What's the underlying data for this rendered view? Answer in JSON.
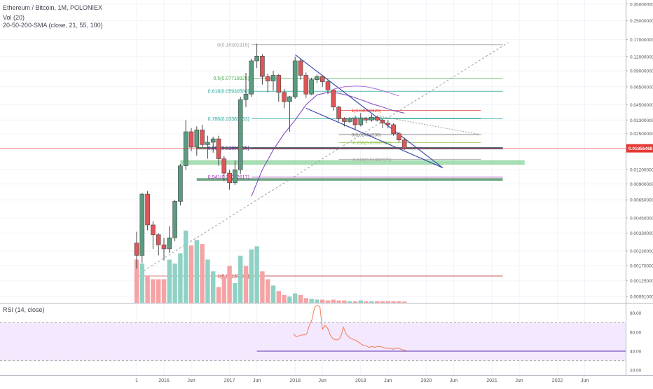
{
  "chart_data": {
    "type": "candlestick",
    "title": "Ethereum / Bitcoin, 1M, POLONIEX",
    "indicators": [
      "Vol (20)",
      "20-50-200-SMA (close, 21, 55, 100)"
    ],
    "price_axis": {
      "scale": "log",
      "range": [
        0.0008,
        0.38
      ],
      "tick_labels": [
        "0.35000000",
        "0.25000000",
        "0.17000000",
        "0.12000000",
        "0.09000000",
        "0.06500000",
        "0.04500000",
        "0.03300000",
        "0.02500000",
        "0.01800000",
        "0.01200000",
        "0.00900000",
        "0.00650000",
        "0.00450000",
        "0.00330000",
        "0.00230000",
        "0.00170000",
        "0.00125000",
        "0.00091000"
      ],
      "tick_values": [
        0.35,
        0.25,
        0.17,
        0.12,
        0.09,
        0.065,
        0.045,
        0.033,
        0.025,
        0.018,
        0.012,
        0.009,
        0.0065,
        0.0045,
        0.0033,
        0.0023,
        0.0017,
        0.00125,
        0.00091
      ],
      "current_price_label": "0.01856488",
      "current_price": 0.01856488
    },
    "time_axis": {
      "tick_labels": [
        "1",
        "2016",
        "Jun",
        "2017",
        "Jun",
        "2018",
        "Jun",
        "2019",
        "Jun",
        "2020",
        "Jun",
        "2021",
        "Jun",
        "2022",
        "Jun"
      ],
      "tick_months": [
        7,
        12,
        17,
        24,
        29,
        36,
        41,
        48,
        53,
        60,
        65,
        72,
        77,
        84,
        89
      ]
    },
    "candles": [
      {
        "m": 7,
        "o": 0.0027,
        "h": 0.0034,
        "l": 0.0016,
        "c": 0.0021
      },
      {
        "m": 8,
        "o": 0.0021,
        "h": 0.0075,
        "l": 0.0018,
        "c": 0.0073
      },
      {
        "m": 9,
        "o": 0.0073,
        "h": 0.0078,
        "l": 0.0035,
        "c": 0.0039
      },
      {
        "m": 10,
        "o": 0.0039,
        "h": 0.0042,
        "l": 0.0024,
        "c": 0.0032
      },
      {
        "m": 11,
        "o": 0.0032,
        "h": 0.0033,
        "l": 0.0021,
        "c": 0.0026
      },
      {
        "m": 12,
        "o": 0.0026,
        "h": 0.003,
        "l": 0.0019,
        "c": 0.0024
      },
      {
        "m": 13,
        "o": 0.0024,
        "h": 0.0038,
        "l": 0.0022,
        "c": 0.003
      },
      {
        "m": 14,
        "o": 0.003,
        "h": 0.0065,
        "l": 0.0028,
        "c": 0.0063
      },
      {
        "m": 15,
        "o": 0.0063,
        "h": 0.0135,
        "l": 0.0058,
        "c": 0.013
      },
      {
        "m": 16,
        "o": 0.013,
        "h": 0.033,
        "l": 0.012,
        "c": 0.026
      },
      {
        "m": 17,
        "o": 0.026,
        "h": 0.028,
        "l": 0.0175,
        "c": 0.019
      },
      {
        "m": 18,
        "o": 0.019,
        "h": 0.029,
        "l": 0.016,
        "c": 0.027
      },
      {
        "m": 19,
        "o": 0.027,
        "h": 0.03,
        "l": 0.019,
        "c": 0.02
      },
      {
        "m": 20,
        "o": 0.02,
        "h": 0.024,
        "l": 0.015,
        "c": 0.021
      },
      {
        "m": 21,
        "o": 0.021,
        "h": 0.0235,
        "l": 0.017,
        "c": 0.0225
      },
      {
        "m": 22,
        "o": 0.0225,
        "h": 0.024,
        "l": 0.013,
        "c": 0.015
      },
      {
        "m": 23,
        "o": 0.015,
        "h": 0.016,
        "l": 0.0095,
        "c": 0.0112
      },
      {
        "m": 24,
        "o": 0.0112,
        "h": 0.012,
        "l": 0.008,
        "c": 0.0092
      },
      {
        "m": 25,
        "o": 0.0092,
        "h": 0.0145,
        "l": 0.0088,
        "c": 0.012
      },
      {
        "m": 26,
        "o": 0.012,
        "h": 0.053,
        "l": 0.011,
        "c": 0.05
      },
      {
        "m": 27,
        "o": 0.05,
        "h": 0.086,
        "l": 0.043,
        "c": 0.056
      },
      {
        "m": 28,
        "o": 0.056,
        "h": 0.115,
        "l": 0.053,
        "c": 0.11
      },
      {
        "m": 29,
        "o": 0.11,
        "h": 0.156,
        "l": 0.095,
        "c": 0.121
      },
      {
        "m": 30,
        "o": 0.121,
        "h": 0.126,
        "l": 0.068,
        "c": 0.08
      },
      {
        "m": 31,
        "o": 0.08,
        "h": 0.085,
        "l": 0.058,
        "c": 0.073
      },
      {
        "m": 32,
        "o": 0.073,
        "h": 0.09,
        "l": 0.06,
        "c": 0.082
      },
      {
        "m": 33,
        "o": 0.082,
        "h": 0.084,
        "l": 0.048,
        "c": 0.058
      },
      {
        "m": 34,
        "o": 0.058,
        "h": 0.062,
        "l": 0.042,
        "c": 0.048
      },
      {
        "m": 35,
        "o": 0.048,
        "h": 0.054,
        "l": 0.026,
        "c": 0.053
      },
      {
        "m": 36,
        "o": 0.053,
        "h": 0.12,
        "l": 0.051,
        "c": 0.11
      },
      {
        "m": 37,
        "o": 0.11,
        "h": 0.115,
        "l": 0.075,
        "c": 0.082
      },
      {
        "m": 38,
        "o": 0.082,
        "h": 0.087,
        "l": 0.052,
        "c": 0.056
      },
      {
        "m": 39,
        "o": 0.056,
        "h": 0.078,
        "l": 0.055,
        "c": 0.075
      },
      {
        "m": 40,
        "o": 0.075,
        "h": 0.083,
        "l": 0.07,
        "c": 0.08
      },
      {
        "m": 41,
        "o": 0.08,
        "h": 0.082,
        "l": 0.065,
        "c": 0.072
      },
      {
        "m": 42,
        "o": 0.072,
        "h": 0.074,
        "l": 0.056,
        "c": 0.061
      },
      {
        "m": 43,
        "o": 0.061,
        "h": 0.062,
        "l": 0.04,
        "c": 0.043
      },
      {
        "m": 44,
        "o": 0.043,
        "h": 0.044,
        "l": 0.032,
        "c": 0.034
      },
      {
        "m": 45,
        "o": 0.034,
        "h": 0.035,
        "l": 0.029,
        "c": 0.032
      },
      {
        "m": 46,
        "o": 0.032,
        "h": 0.035,
        "l": 0.031,
        "c": 0.034
      },
      {
        "m": 47,
        "o": 0.034,
        "h": 0.036,
        "l": 0.027,
        "c": 0.03
      },
      {
        "m": 48,
        "o": 0.03,
        "h": 0.038,
        "l": 0.029,
        "c": 0.034
      },
      {
        "m": 49,
        "o": 0.034,
        "h": 0.035,
        "l": 0.031,
        "c": 0.033
      },
      {
        "m": 50,
        "o": 0.033,
        "h": 0.037,
        "l": 0.032,
        "c": 0.035
      },
      {
        "m": 51,
        "o": 0.035,
        "h": 0.036,
        "l": 0.032,
        "c": 0.033
      },
      {
        "m": 52,
        "o": 0.033,
        "h": 0.034,
        "l": 0.028,
        "c": 0.031
      },
      {
        "m": 53,
        "o": 0.031,
        "h": 0.033,
        "l": 0.028,
        "c": 0.03
      },
      {
        "m": 54,
        "o": 0.03,
        "h": 0.031,
        "l": 0.024,
        "c": 0.025
      },
      {
        "m": 55,
        "o": 0.025,
        "h": 0.026,
        "l": 0.021,
        "c": 0.022
      },
      {
        "m": 56,
        "o": 0.022,
        "h": 0.023,
        "l": 0.018,
        "c": 0.0186
      }
    ],
    "volume_bars": [
      {
        "m": 7,
        "v": 0.55,
        "up": false
      },
      {
        "m": 8,
        "v": 0.5,
        "up": true
      },
      {
        "m": 9,
        "v": 0.35,
        "up": false
      },
      {
        "m": 10,
        "v": 0.3,
        "up": false
      },
      {
        "m": 11,
        "v": 0.3,
        "up": false
      },
      {
        "m": 12,
        "v": 0.3,
        "up": false
      },
      {
        "m": 13,
        "v": 0.55,
        "up": true
      },
      {
        "m": 14,
        "v": 0.5,
        "up": true
      },
      {
        "m": 15,
        "v": 0.63,
        "up": true
      },
      {
        "m": 16,
        "v": 0.92,
        "up": true
      },
      {
        "m": 17,
        "v": 0.73,
        "up": false
      },
      {
        "m": 18,
        "v": 0.8,
        "up": true
      },
      {
        "m": 19,
        "v": 0.75,
        "up": false
      },
      {
        "m": 20,
        "v": 0.55,
        "up": true
      },
      {
        "m": 21,
        "v": 0.4,
        "up": true
      },
      {
        "m": 22,
        "v": 0.2,
        "up": false
      },
      {
        "m": 23,
        "v": 0.33,
        "up": false
      },
      {
        "m": 24,
        "v": 0.47,
        "up": false
      },
      {
        "m": 25,
        "v": 0.25,
        "up": true
      },
      {
        "m": 26,
        "v": 0.6,
        "up": true
      },
      {
        "m": 27,
        "v": 0.47,
        "up": false
      },
      {
        "m": 28,
        "v": 0.68,
        "up": true
      },
      {
        "m": 29,
        "v": 0.72,
        "up": true
      },
      {
        "m": 30,
        "v": 0.4,
        "up": false
      },
      {
        "m": 31,
        "v": 0.3,
        "up": false
      },
      {
        "m": 32,
        "v": 0.22,
        "up": true
      },
      {
        "m": 33,
        "v": 0.15,
        "up": false
      },
      {
        "m": 34,
        "v": 0.1,
        "up": false
      },
      {
        "m": 35,
        "v": 0.08,
        "up": true
      },
      {
        "m": 36,
        "v": 0.12,
        "up": true
      },
      {
        "m": 37,
        "v": 0.1,
        "up": false
      },
      {
        "m": 38,
        "v": 0.06,
        "up": false
      },
      {
        "m": 39,
        "v": 0.05,
        "up": true
      },
      {
        "m": 40,
        "v": 0.04,
        "up": true
      },
      {
        "m": 41,
        "v": 0.04,
        "up": false
      },
      {
        "m": 42,
        "v": 0.03,
        "up": false
      },
      {
        "m": 43,
        "v": 0.04,
        "up": false
      },
      {
        "m": 44,
        "v": 0.03,
        "up": false
      },
      {
        "m": 45,
        "v": 0.03,
        "up": false
      },
      {
        "m": 46,
        "v": 0.02,
        "up": true
      },
      {
        "m": 47,
        "v": 0.02,
        "up": false
      },
      {
        "m": 48,
        "v": 0.03,
        "up": true
      },
      {
        "m": 49,
        "v": 0.02,
        "up": false
      },
      {
        "m": 50,
        "v": 0.02,
        "up": true
      },
      {
        "m": 51,
        "v": 0.02,
        "up": false
      },
      {
        "m": 52,
        "v": 0.02,
        "up": false
      },
      {
        "m": 53,
        "v": 0.02,
        "up": false
      },
      {
        "m": 54,
        "v": 0.02,
        "up": false
      },
      {
        "m": 55,
        "v": 0.02,
        "up": false
      },
      {
        "m": 56,
        "v": 0.015,
        "up": false
      }
    ],
    "sma_lines": [
      {
        "period": 21,
        "color": "#7b3fbf",
        "points": [
          [
            28,
            0.007
          ],
          [
            30,
            0.012
          ],
          [
            32,
            0.018
          ],
          [
            34,
            0.025
          ],
          [
            36,
            0.033
          ],
          [
            38,
            0.045
          ],
          [
            40,
            0.055
          ],
          [
            42,
            0.058
          ],
          [
            44,
            0.057
          ],
          [
            46,
            0.054
          ],
          [
            48,
            0.05
          ],
          [
            50,
            0.046
          ],
          [
            52,
            0.043
          ],
          [
            54,
            0.04
          ],
          [
            56,
            0.038
          ]
        ]
      },
      {
        "period": 55,
        "color": "#b06bd6",
        "points": [
          [
            43,
            0.062
          ],
          [
            45,
            0.065
          ],
          [
            47,
            0.066
          ],
          [
            49,
            0.065
          ],
          [
            51,
            0.062
          ],
          [
            53,
            0.058
          ],
          [
            55,
            0.054
          ]
        ]
      }
    ],
    "fib_levels": [
      {
        "label": "0(0.15301915)",
        "value": 0.15301915,
        "color": "#9e9e9e"
      },
      {
        "label": "0.5(0.07719929)",
        "value": 0.07719929,
        "color": "#4caf50"
      },
      {
        "label": "0.618(0.05930580)",
        "value": 0.0593058,
        "color": "#26a69a"
      },
      {
        "label": "0.786(0.03383033)",
        "value": 0.03383033,
        "color": "#26a69a"
      },
      {
        "label": "0.886(0.01866635)",
        "value": 0.01866635,
        "color": "#311b92"
      },
      {
        "label": "0.941(0.01032617)",
        "value": 0.01032617,
        "color": "#9c27b0"
      },
      {
        "label": "1(0.00137942)",
        "value": 0.00137942,
        "color": "#b71c1c"
      }
    ],
    "fib_levels_2": [
      {
        "label": "1(0.04009420)",
        "value": 0.0400942,
        "color": "#e53935"
      },
      {
        "label": "0.618(0.03420)",
        "value": 0.0342,
        "color": "#26a69a"
      },
      {
        "label": "0(0.02454230)",
        "value": 0.0245423,
        "color": "#757575"
      },
      {
        "label": "-0.236(0.02087332)",
        "value": 0.02087332,
        "color": "#8bc34a"
      },
      {
        "label": "-0.618(0.01482375)",
        "value": 0.01482375,
        "color": "#9e9e9e"
      }
    ],
    "rsi": {
      "label": "RSI (14, close)",
      "tick_labels": [
        "80.00",
        "60.00",
        "40.00",
        "20.00"
      ],
      "tick_values": [
        80,
        60,
        40,
        20
      ],
      "range": [
        15,
        90
      ],
      "band": [
        30,
        70
      ],
      "baseline": 40,
      "points": [
        [
          29,
          58
        ],
        [
          30,
          55
        ],
        [
          31,
          56
        ],
        [
          32,
          57
        ],
        [
          33,
          57
        ],
        [
          34,
          58
        ],
        [
          35,
          67
        ],
        [
          36,
          73
        ],
        [
          37,
          86
        ],
        [
          38,
          88
        ],
        [
          39,
          87
        ],
        [
          40,
          63
        ],
        [
          41,
          67
        ],
        [
          42,
          64
        ],
        [
          43,
          57
        ],
        [
          44,
          53
        ],
        [
          45,
          52
        ],
        [
          46,
          52
        ],
        [
          47,
          55
        ],
        [
          48,
          65
        ],
        [
          49,
          58
        ],
        [
          50,
          55
        ],
        [
          51,
          53
        ],
        [
          52,
          52
        ],
        [
          53,
          51
        ],
        [
          54,
          49
        ],
        [
          55,
          47
        ],
        [
          56,
          46
        ],
        [
          57,
          45
        ],
        [
          58,
          44
        ],
        [
          59,
          45
        ],
        [
          60,
          44
        ],
        [
          61,
          45
        ],
        [
          62,
          45
        ],
        [
          63,
          44
        ],
        [
          64,
          43
        ],
        [
          65,
          43
        ],
        [
          66,
          43
        ],
        [
          67,
          42
        ],
        [
          68,
          43
        ],
        [
          69,
          43
        ],
        [
          70,
          42
        ],
        [
          71,
          41
        ],
        [
          72,
          41
        ]
      ]
    },
    "legend": "top-left",
    "grid": true,
    "colors": {
      "up": "#5b9b80",
      "down": "#e05557",
      "vol_up": "#8fd1c4",
      "vol_down": "#f5a3a5",
      "current_price": "#e53935",
      "support_band": "#8bd39a"
    }
  }
}
